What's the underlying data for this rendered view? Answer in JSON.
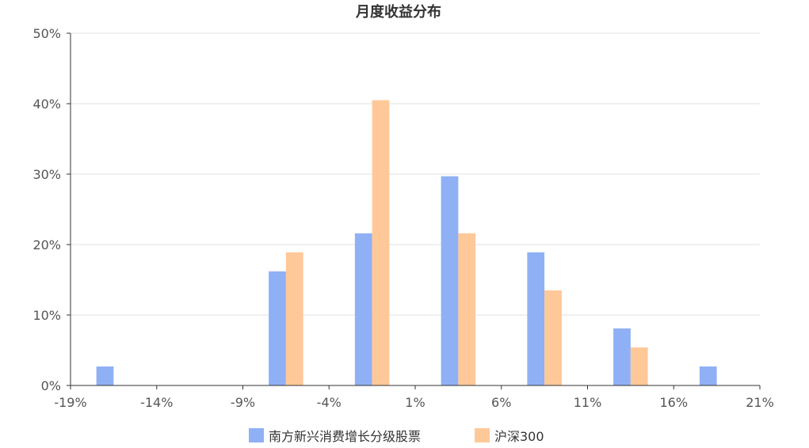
{
  "chart_data": {
    "type": "bar",
    "title": "月度收益分布",
    "xlabel": "",
    "ylabel": "",
    "x_tick_labels": [
      "-19%",
      "-14%",
      "-9%",
      "-4%",
      "1%",
      "6%",
      "11%",
      "16%",
      "21%"
    ],
    "y_tick_labels": [
      "0%",
      "10%",
      "20%",
      "30%",
      "40%",
      "50%"
    ],
    "x_range": [
      -19,
      21
    ],
    "ylim": [
      0,
      50
    ],
    "categories": [
      "-16.5%",
      "-11.5%",
      "-6.5%",
      "-1.5%",
      "3.5%",
      "8.5%",
      "13.5%",
      "18.5%"
    ],
    "bin_centers": [
      -16.5,
      -11.5,
      -6.5,
      -1.5,
      3.5,
      8.5,
      13.5,
      18.5
    ],
    "series": [
      {
        "name": "南方新兴消费增长分级股票",
        "color": "#8fb0f5",
        "values": [
          2.7,
          0,
          16.2,
          21.6,
          29.7,
          18.9,
          8.1,
          2.7
        ]
      },
      {
        "name": "沪深300",
        "color": "#ffc899",
        "values": [
          0,
          0,
          18.9,
          40.5,
          21.6,
          13.5,
          5.4,
          0
        ]
      }
    ],
    "grid": true,
    "legend": "bottom"
  }
}
